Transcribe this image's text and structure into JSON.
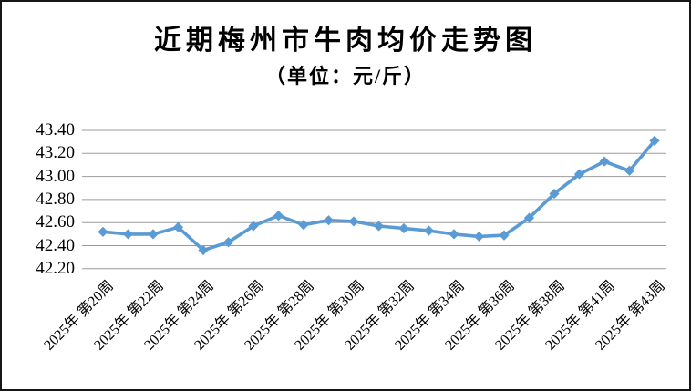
{
  "chart_data": {
    "type": "line",
    "title": "近期梅州市牛肉均价走势图",
    "subtitle": "（单位：元/斤）",
    "ylabel": "",
    "xlabel": "",
    "ylim": [
      42.2,
      43.4
    ],
    "grid": true,
    "legend": false,
    "line_color": "#5B9BD5",
    "marker": "diamond",
    "gridline_color": "#9B9B9B",
    "y_tick_labels": [
      "43.40",
      "43.20",
      "43.00",
      "42.80",
      "42.60",
      "42.40",
      "42.20"
    ],
    "x_tick_labels": [
      "2025年 第20周",
      "2025年 第22周",
      "2025年 第24周",
      "2025年 第26周",
      "2025年 第28周",
      "2025年 第30周",
      "2025年 第32周",
      "2025年 第34周",
      "2025年 第36周",
      "2025年 第38周",
      "2025年 第41周",
      "2025年 第43周"
    ],
    "x_tick_point_indices": [
      0,
      2,
      4,
      6,
      8,
      10,
      12,
      14,
      16,
      18,
      20,
      22
    ],
    "points": [
      {
        "week": "2025年 第20周",
        "value": 42.52
      },
      {
        "week": "2025年 第21周",
        "value": 42.5
      },
      {
        "week": "2025年 第22周",
        "value": 42.5
      },
      {
        "week": "2025年 第23周",
        "value": 42.56
      },
      {
        "week": "2025年 第24周",
        "value": 42.36
      },
      {
        "week": "2025年 第25周",
        "value": 42.43
      },
      {
        "week": "2025年 第26周",
        "value": 42.57
      },
      {
        "week": "2025年 第27周",
        "value": 42.66
      },
      {
        "week": "2025年 第28周",
        "value": 42.58
      },
      {
        "week": "2025年 第29周",
        "value": 42.62
      },
      {
        "week": "2025年 第30周",
        "value": 42.61
      },
      {
        "week": "2025年 第31周",
        "value": 42.57
      },
      {
        "week": "2025年 第32周",
        "value": 42.55
      },
      {
        "week": "2025年 第33周",
        "value": 42.53
      },
      {
        "week": "2025年 第34周",
        "value": 42.5
      },
      {
        "week": "2025年 第35周",
        "value": 42.48
      },
      {
        "week": "2025年 第36周",
        "value": 42.49
      },
      {
        "week": "2025年 第37周",
        "value": 42.64
      },
      {
        "week": "2025年 第38周",
        "value": 42.85
      },
      {
        "week": "2025年 第40周",
        "value": 43.02
      },
      {
        "week": "2025年 第41周",
        "value": 43.13
      },
      {
        "week": "2025年 第42周",
        "value": 43.05
      },
      {
        "week": "2025年 第43周",
        "value": 43.31
      }
    ]
  }
}
